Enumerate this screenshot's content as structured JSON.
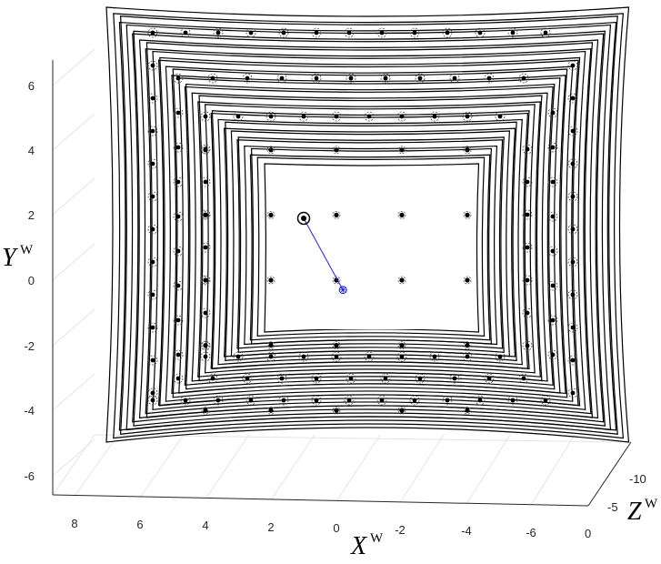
{
  "chart_data": {
    "type": "scatter",
    "title": "",
    "grid": true,
    "axes": {
      "x": {
        "label": "X",
        "superscript": "W",
        "ticks": [
          "8",
          "6",
          "4",
          "2",
          "0",
          "-2",
          "-4",
          "-6"
        ],
        "range": [
          9,
          -7.5
        ],
        "reversed": true
      },
      "y": {
        "label": "Y",
        "superscript": "W",
        "ticks": [
          "6",
          "4",
          "2",
          "0",
          "-2",
          "-4",
          "-6"
        ],
        "range": [
          -7,
          7
        ]
      },
      "z": {
        "label": "Z",
        "superscript": "W",
        "ticks": [
          "-10",
          "-5",
          "0"
        ],
        "range": [
          -12,
          0
        ]
      }
    },
    "frame_stack": {
      "count": 36,
      "color": "#000000",
      "description": "nested distorted rectangular outlines of a camera frustum sequence"
    },
    "center_grid": {
      "columns": [
        -4,
        -2,
        0,
        2,
        4
      ],
      "rows": [
        4,
        2,
        0,
        -2,
        -4
      ]
    },
    "camera_center": {
      "x": -0.2,
      "y": -0.3,
      "color": "#2222dd"
    },
    "highlight_point": {
      "x": 1.0,
      "y": 1.9
    }
  }
}
